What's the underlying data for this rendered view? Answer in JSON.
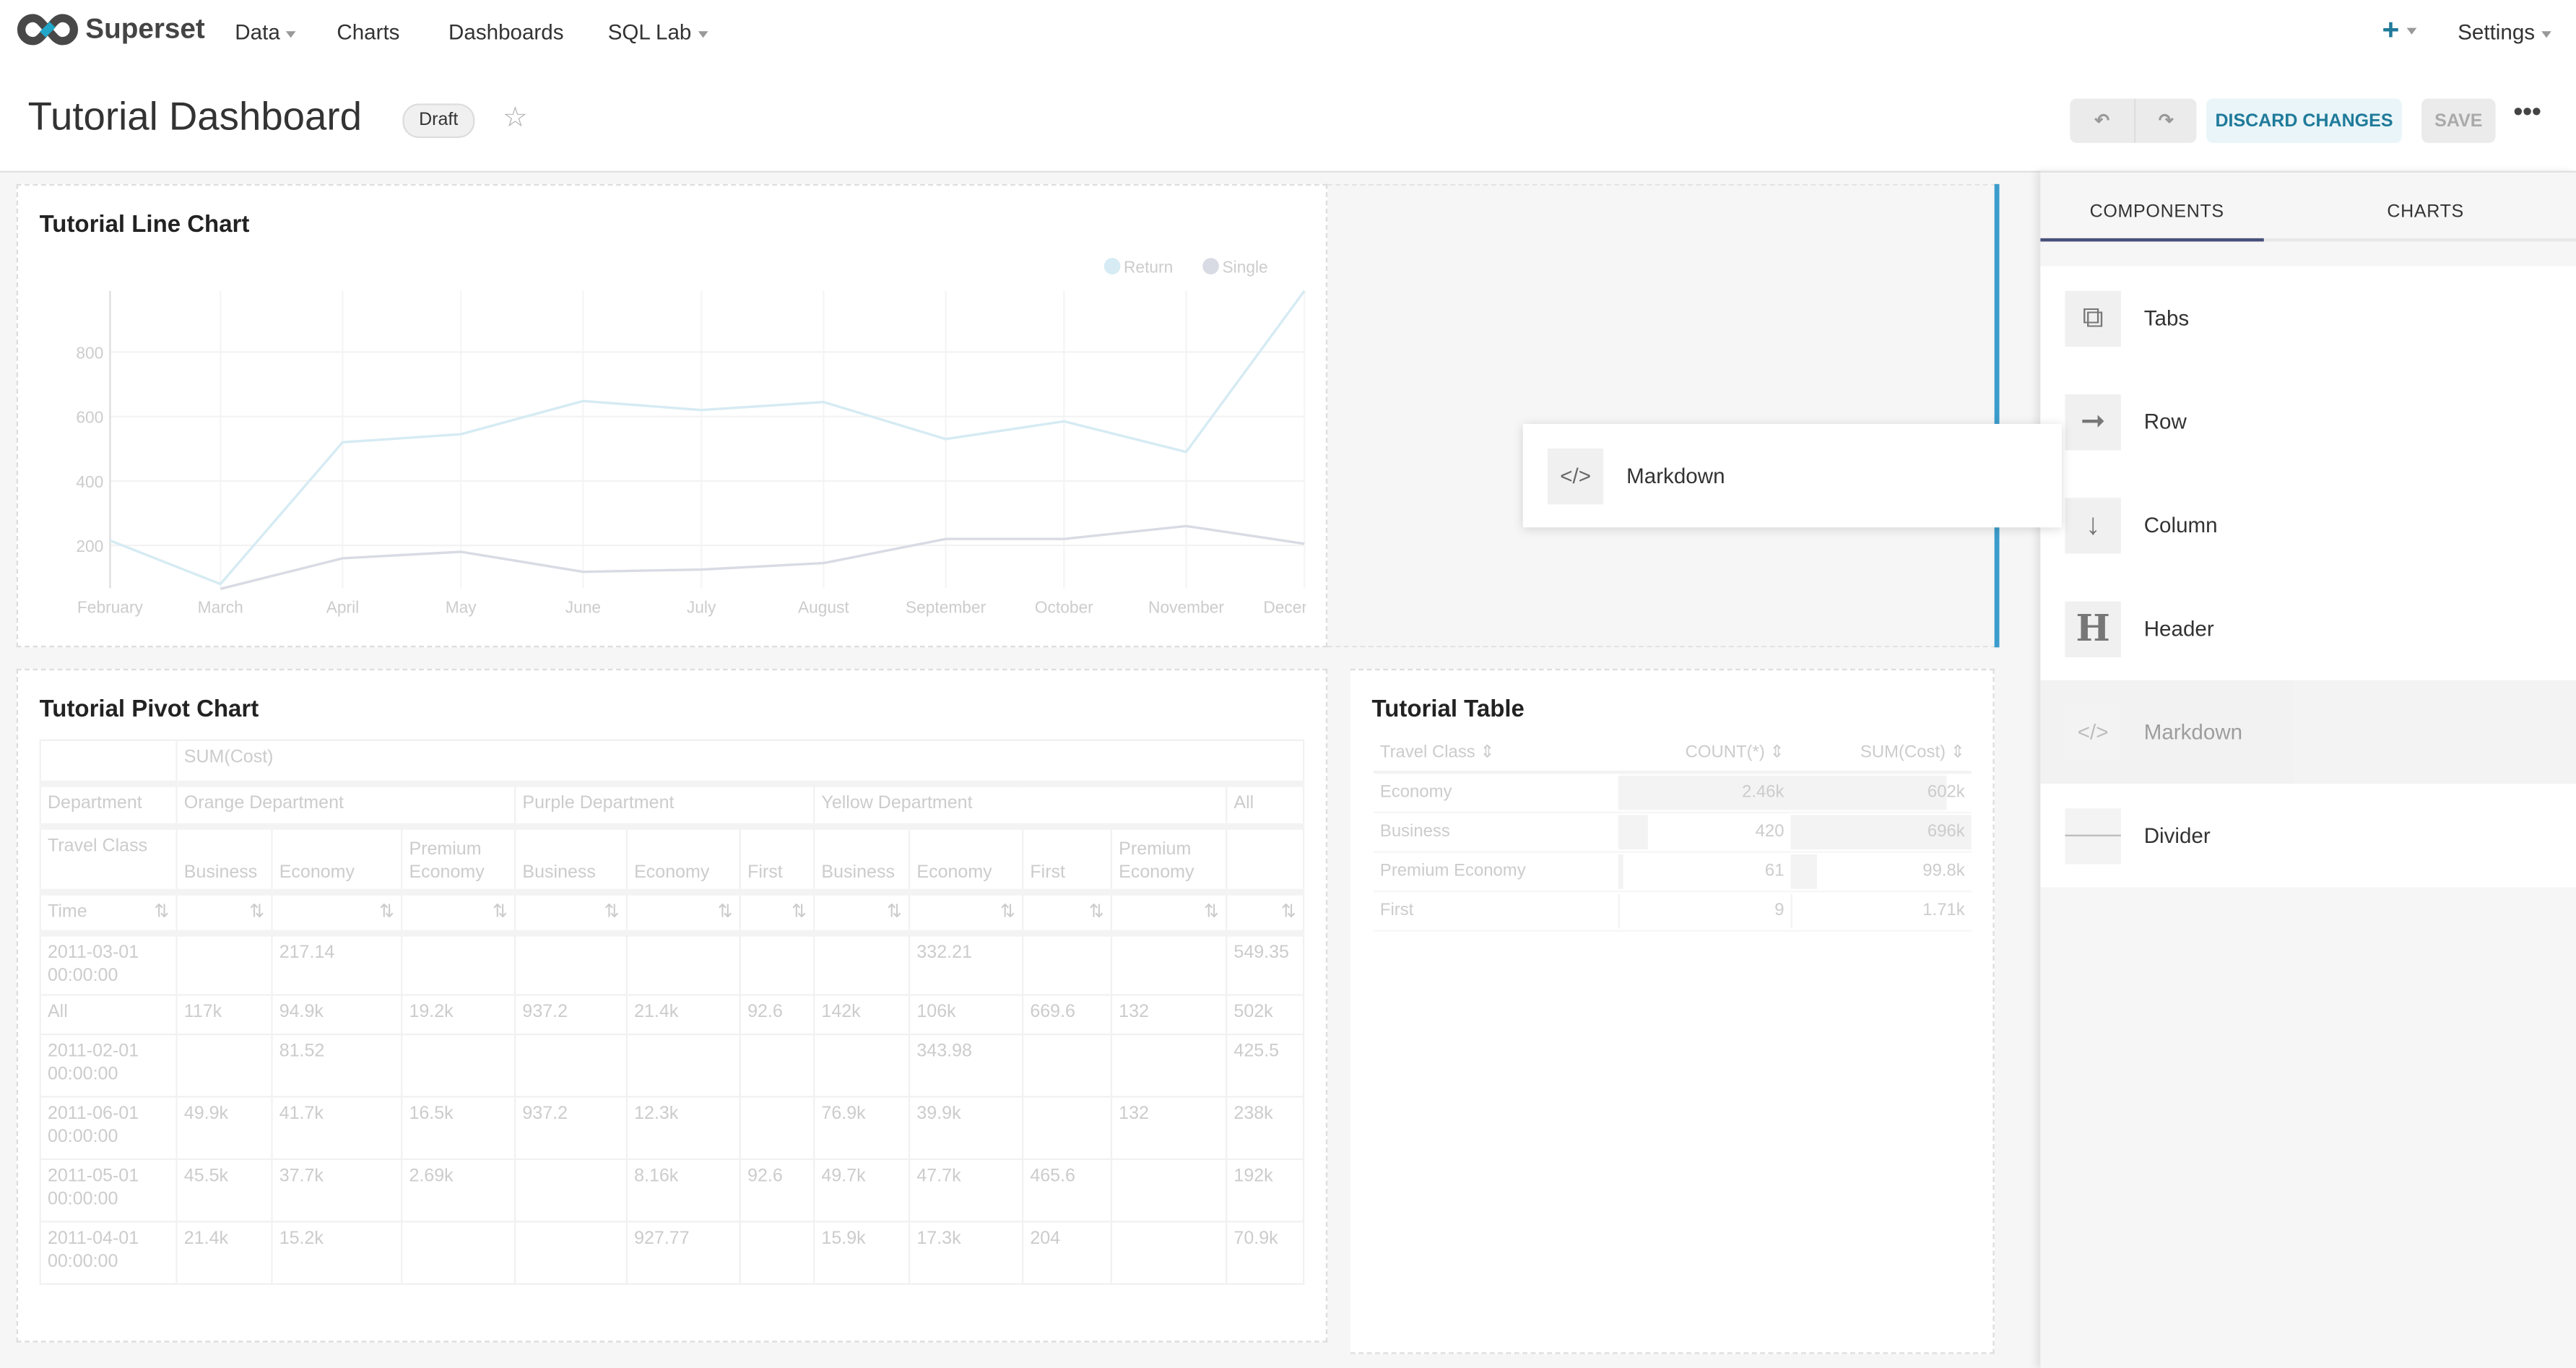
{
  "nav": {
    "brand": "Superset",
    "items": [
      "Data",
      "Charts",
      "Dashboards",
      "SQL Lab"
    ],
    "settings": "Settings",
    "accent": "#20a7c9"
  },
  "header": {
    "title": "Tutorial Dashboard",
    "badge": "Draft",
    "discard": "DISCARD CHANGES",
    "save": "SAVE"
  },
  "line_chart": {
    "title": "Tutorial Line Chart"
  },
  "chart_data": {
    "type": "line",
    "title": "Tutorial Line Chart",
    "x": [
      "2011-02-01",
      "2011-03-01",
      "2011-04-01",
      "2011-05-01",
      "2011-06-01",
      "2011-07-01",
      "2011-08-01",
      "2011-09-01",
      "2011-10-01",
      "2011-11-01",
      "2011-12-01"
    ],
    "xtick_labels": [
      "February",
      "March",
      "April",
      "May",
      "June",
      "July",
      "August",
      "September",
      "October",
      "November",
      "December"
    ],
    "yticks": [
      200,
      400,
      600,
      800
    ],
    "ylim": [
      67,
      990
    ],
    "grid": true,
    "legend": "top-right",
    "series": [
      {
        "name": "Return",
        "color": "#d6ebf3",
        "values": [
          215,
          80,
          520,
          545,
          648,
          620,
          645,
          530,
          585,
          490,
          990
        ]
      },
      {
        "name": "Single",
        "color": "#d9dbe4",
        "values": [
          null,
          65,
          160,
          180,
          118,
          125,
          145,
          220,
          220,
          260,
          205
        ]
      }
    ]
  },
  "pivot": {
    "title": "Tutorial Pivot Chart",
    "metric": "SUM(Cost)",
    "dept_label": "Department",
    "depts": [
      "Orange Department",
      "Purple Department",
      "Yellow Department",
      "All"
    ],
    "class_label": "Travel Class",
    "classes": [
      "Business",
      "Economy",
      "Premium Economy",
      "Business",
      "Economy",
      "First",
      "Business",
      "Economy",
      "First",
      "Premium Economy"
    ],
    "time_label": "Time",
    "rows": [
      [
        "2011-03-01 00:00:00",
        "",
        "217.14",
        "",
        "",
        "",
        "",
        "",
        "332.21",
        "",
        "",
        "549.35"
      ],
      [
        "All",
        "117k",
        "94.9k",
        "19.2k",
        "937.2",
        "21.4k",
        "92.6",
        "142k",
        "106k",
        "669.6",
        "132",
        "502k"
      ],
      [
        "2011-02-01 00:00:00",
        "",
        "81.52",
        "",
        "",
        "",
        "",
        "",
        "343.98",
        "",
        "",
        "425.5"
      ],
      [
        "2011-06-01 00:00:00",
        "49.9k",
        "41.7k",
        "16.5k",
        "937.2",
        "12.3k",
        "",
        "76.9k",
        "39.9k",
        "",
        "132",
        "238k"
      ],
      [
        "2011-05-01 00:00:00",
        "45.5k",
        "37.7k",
        "2.69k",
        "",
        "8.16k",
        "92.6",
        "49.7k",
        "47.7k",
        "465.6",
        "",
        "192k"
      ],
      [
        "2011-04-01 00:00:00",
        "21.4k",
        "15.2k",
        "",
        "",
        "927.77",
        "",
        "15.9k",
        "17.3k",
        "204",
        "",
        "70.9k"
      ]
    ]
  },
  "table": {
    "title": "Tutorial Table",
    "columns": [
      "Travel Class",
      "COUNT(*)",
      "SUM(Cost)"
    ],
    "rows": [
      [
        "Economy",
        "2.46k",
        "602k"
      ],
      [
        "Business",
        "420",
        "696k"
      ],
      [
        "Premium Economy",
        "61",
        "99.8k"
      ],
      [
        "First",
        "9",
        "1.71k"
      ]
    ]
  },
  "sidebar": {
    "tabs": [
      "COMPONENTS",
      "CHARTS"
    ],
    "items": [
      "Tabs",
      "Row",
      "Column",
      "Header",
      "Markdown",
      "Divider"
    ]
  },
  "drag_ghost": {
    "label": "Markdown"
  }
}
